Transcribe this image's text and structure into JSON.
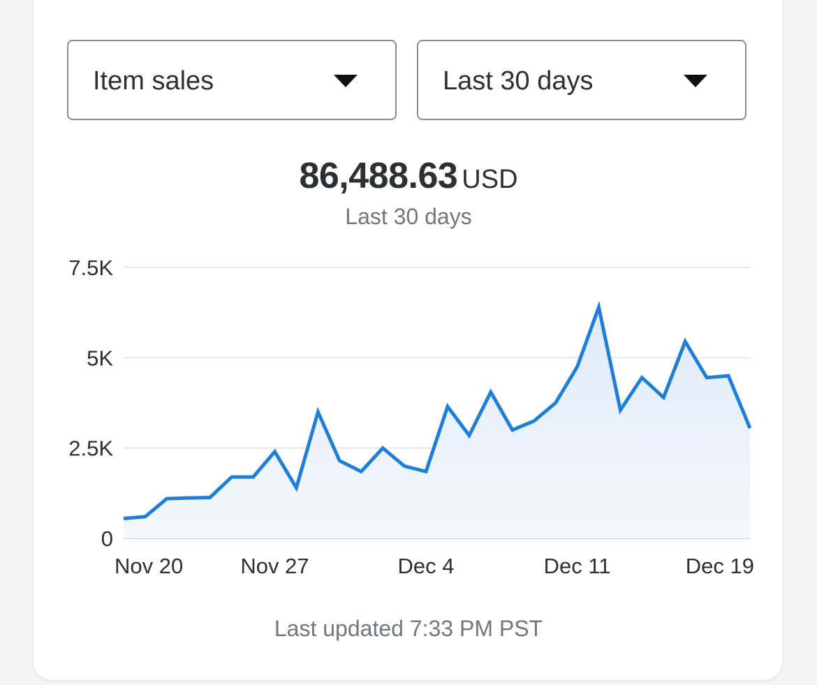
{
  "filters": {
    "metric": "Item sales",
    "range": "Last 30 days"
  },
  "summary": {
    "total": "86,488.63",
    "currency": "USD",
    "period_label": "Last 30 days"
  },
  "footer": {
    "last_updated": "Last updated 7:33 PM PST"
  },
  "colors": {
    "line": "#1e7ed8",
    "fill": "#e3eefa",
    "grid": "#e6e7e8"
  },
  "chart_data": {
    "type": "area",
    "title": "",
    "xlabel": "",
    "ylabel": "",
    "ylim": [
      0,
      7500
    ],
    "y_ticks": [
      {
        "value": 0,
        "label": "0"
      },
      {
        "value": 2500,
        "label": "2.5K"
      },
      {
        "value": 5000,
        "label": "5K"
      },
      {
        "value": 7500,
        "label": "7.5K"
      }
    ],
    "x_ticks": [
      {
        "date": "Nov 20",
        "label": "Nov 20"
      },
      {
        "date": "Nov 27",
        "label": "Nov 27"
      },
      {
        "date": "Dec 4",
        "label": "Dec 4"
      },
      {
        "date": "Dec 11",
        "label": "Dec 11"
      },
      {
        "date": "Dec 19",
        "label": "Dec 19"
      }
    ],
    "x": [
      "Nov 20",
      "Nov 21",
      "Nov 22",
      "Nov 23",
      "Nov 24",
      "Nov 25",
      "Nov 26",
      "Nov 27",
      "Nov 28",
      "Nov 29",
      "Nov 30",
      "Dec 1",
      "Dec 2",
      "Dec 3",
      "Dec 4",
      "Dec 5",
      "Dec 6",
      "Dec 7",
      "Dec 8",
      "Dec 9",
      "Dec 10",
      "Dec 11",
      "Dec 12",
      "Dec 13",
      "Dec 14",
      "Dec 15",
      "Dec 16",
      "Dec 17",
      "Dec 18",
      "Dec 19"
    ],
    "values": [
      550,
      600,
      1100,
      1120,
      1130,
      1700,
      1700,
      2400,
      1400,
      3500,
      2150,
      1850,
      2500,
      2000,
      1850,
      3650,
      2850,
      4050,
      3000,
      3250,
      3750,
      4750,
      6400,
      3550,
      4450,
      3900,
      5450,
      4450,
      4500,
      3050
    ]
  }
}
